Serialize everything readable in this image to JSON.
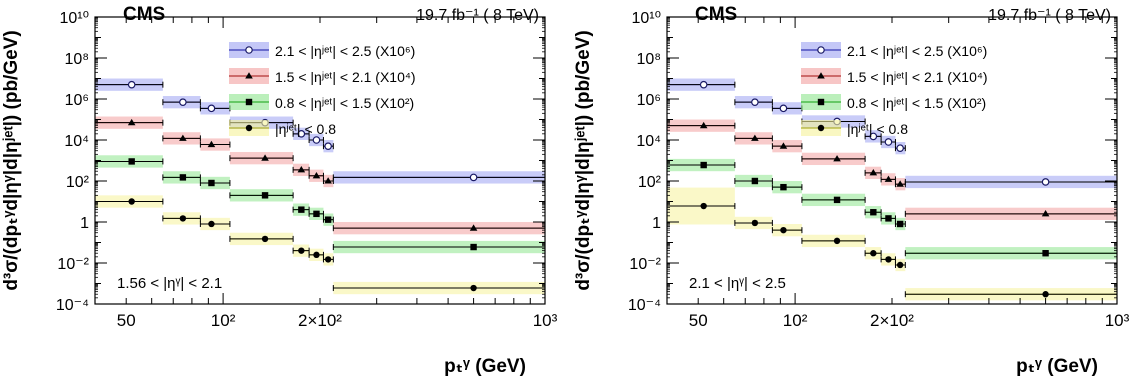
{
  "figure": {
    "experiment_label": "CMS",
    "lumi_label": "19.7 fb⁻¹ ( 8 TeV)",
    "ylabel": "d³σ/(dpₜᵞd|ηᵞ|d|ηʲᵉᵗ|) (pb/GeV)",
    "xlabel": "pₜᵞ (GeV)",
    "x_tick_labels": [
      "50",
      "10²",
      "2×10²",
      "10³"
    ],
    "y_tick_labels": [
      "10⁻⁴",
      "10⁻²",
      "1",
      "10²",
      "10⁴",
      "10⁶",
      "10⁸",
      "10¹⁰"
    ],
    "legend": [
      {
        "label": "2.1 < |ηʲᵉᵗ| < 2.5 (X10⁶)",
        "marker": "open-circle",
        "band_color": "#9da2f2",
        "line_color": "#1010a0"
      },
      {
        "label": "1.5 < |ηʲᵉᵗ| < 2.1 (X10⁴)",
        "marker": "triangle",
        "band_color": "#f2a0a0",
        "line_color": "#a01010"
      },
      {
        "label": "0.8 < |ηʲᵉᵗ| < 1.5 (X10²)",
        "marker": "square",
        "band_color": "#8ee58e",
        "line_color": "#10a010"
      },
      {
        "label": "|ηʲᵉᵗ| < 0.8",
        "marker": "circle",
        "band_color": "#f5f29a",
        "line_color": "#a0a010"
      }
    ]
  },
  "chart_data": [
    {
      "type": "scatter",
      "panel_label": "1.56 < |ηᵞ| < 2.1",
      "x_scale": "log",
      "y_scale": "log",
      "xlim": [
        40,
        1000
      ],
      "ylim": [
        0.0001,
        10000000000
      ],
      "x_bins": [
        [
          40,
          65
        ],
        [
          65,
          85
        ],
        [
          85,
          105
        ],
        [
          105,
          165
        ],
        [
          165,
          185
        ],
        [
          185,
          205
        ],
        [
          205,
          220
        ],
        [
          220,
          1000
        ]
      ],
      "series": [
        {
          "name": "2.1 < |ηʲᵉᵗ| < 2.5 (X10⁶)",
          "x": [
            52,
            75,
            92,
            135,
            175,
            195,
            212,
            600
          ],
          "y": [
            5000000,
            700000,
            350000,
            70000,
            20000,
            10000,
            5000,
            150
          ]
        },
        {
          "name": "1.5 < |ηʲᵉᵗ| < 2.1 (X10⁴)",
          "x": [
            52,
            75,
            92,
            135,
            175,
            195,
            212,
            600
          ],
          "y": [
            70000,
            12000,
            6000,
            1300,
            350,
            180,
            100,
            0.5
          ]
        },
        {
          "name": "0.8 < |ηʲᵉᵗ| < 1.5 (X10²)",
          "x": [
            52,
            75,
            92,
            135,
            175,
            195,
            212,
            600
          ],
          "y": [
            900,
            150,
            80,
            20,
            4,
            2.5,
            1.3,
            0.06
          ]
        },
        {
          "name": "|ηʲᵉᵗ| < 0.8",
          "x": [
            52,
            75,
            92,
            135,
            175,
            195,
            212,
            600
          ],
          "y": [
            10,
            1.5,
            0.8,
            0.15,
            0.04,
            0.025,
            0.015,
            0.0006
          ]
        }
      ]
    },
    {
      "type": "scatter",
      "panel_label": "2.1 < |ηᵞ| < 2.5",
      "x_scale": "log",
      "y_scale": "log",
      "xlim": [
        40,
        1000
      ],
      "ylim": [
        0.0001,
        10000000000
      ],
      "x_bins": [
        [
          40,
          65
        ],
        [
          65,
          85
        ],
        [
          85,
          105
        ],
        [
          105,
          165
        ],
        [
          165,
          185
        ],
        [
          185,
          205
        ],
        [
          205,
          220
        ],
        [
          220,
          1000
        ]
      ],
      "series": [
        {
          "name": "2.1 < |ηʲᵉᵗ| < 2.5 (X10⁶)",
          "x": [
            52,
            75,
            92,
            135,
            175,
            195,
            212,
            600
          ],
          "y": [
            5000000,
            700000,
            350000,
            80000,
            15000,
            8000,
            4000,
            90
          ]
        },
        {
          "name": "1.5 < |ηʲᵉᵗ| < 2.1 (X10⁴)",
          "x": [
            52,
            75,
            92,
            135,
            175,
            195,
            212,
            600
          ],
          "y": [
            50000,
            12000,
            5000,
            1200,
            250,
            120,
            70,
            2.5
          ]
        },
        {
          "name": "0.8 < |ηʲᵉᵗ| < 1.5 (X10²)",
          "x": [
            52,
            75,
            92,
            135,
            175,
            195,
            212,
            600
          ],
          "y": [
            600,
            100,
            50,
            12,
            3,
            1.5,
            0.8,
            0.03
          ]
        },
        {
          "name": "|ηʲᵉᵗ| < 0.8",
          "x": [
            52,
            75,
            92,
            135,
            175,
            195,
            212,
            600
          ],
          "y": [
            6,
            0.9,
            0.4,
            0.12,
            0.03,
            0.015,
            0.008,
            0.0003
          ]
        }
      ]
    }
  ]
}
